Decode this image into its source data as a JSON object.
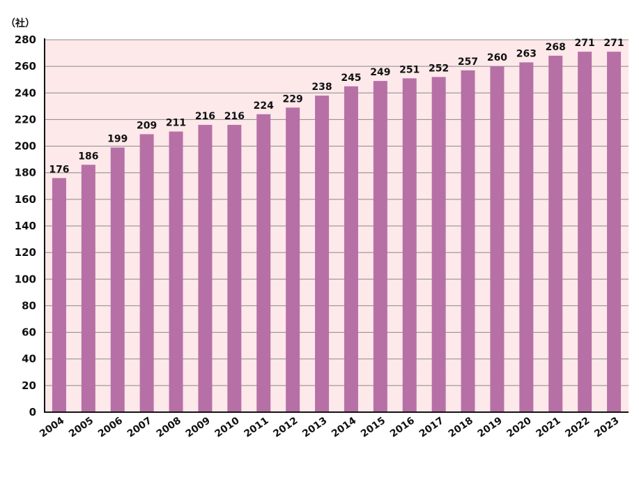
{
  "chart_data": {
    "type": "bar",
    "unit_label": "（社）",
    "categories": [
      "2004",
      "2005",
      "2006",
      "2007",
      "2008",
      "2009",
      "2010",
      "2011",
      "2012",
      "2013",
      "2014",
      "2015",
      "2016",
      "2017",
      "2018",
      "2019",
      "2020",
      "2021",
      "2022",
      "2023"
    ],
    "values": [
      176,
      186,
      199,
      209,
      211,
      216,
      216,
      224,
      229,
      238,
      245,
      249,
      251,
      252,
      257,
      260,
      263,
      268,
      271,
      271
    ],
    "data_labels": [
      "176",
      "186",
      "199",
      "209",
      "211",
      "216",
      "216",
      "224",
      "229",
      "238",
      "245",
      "249",
      "251",
      "252",
      "257",
      "260",
      "263",
      "268",
      "271",
      "271"
    ],
    "ylim": [
      0,
      280
    ],
    "yticks": [
      "0",
      "20",
      "40",
      "60",
      "80",
      "100",
      "120",
      "140",
      "160",
      "180",
      "200",
      "220",
      "240",
      "260",
      "280"
    ],
    "grid": true,
    "legend": "none",
    "colors": {
      "bar": "#b770a6",
      "plot_background": "#fde8ea",
      "gridline": "#888888",
      "axis": "#111111"
    }
  }
}
